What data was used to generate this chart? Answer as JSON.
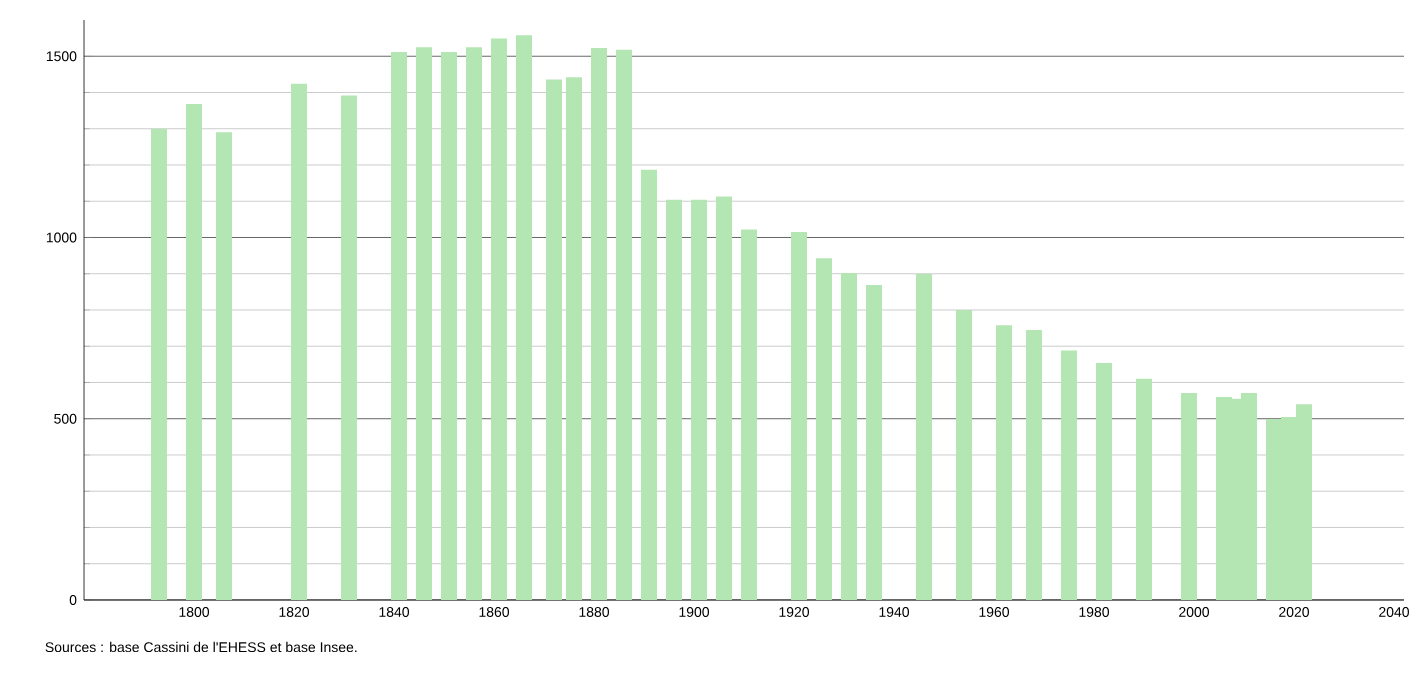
{
  "chart_data": {
    "type": "bar",
    "series": [
      {
        "color": "#b3e6b3",
        "x": [
          1793,
          1800,
          1806,
          1821,
          1831,
          1841,
          1846,
          1851,
          1856,
          1861,
          1866,
          1872,
          1876,
          1881,
          1886,
          1891,
          1896,
          1901,
          1906,
          1911,
          1921,
          1926,
          1931,
          1936,
          1946,
          1954,
          1962,
          1968,
          1975,
          1982,
          1990,
          1999,
          2006,
          2008,
          2011,
          2016,
          2019,
          2022
        ],
        "values": [
          1300,
          1368,
          1290,
          1424,
          1392,
          1512,
          1525,
          1512,
          1525,
          1549,
          1558,
          1436,
          1442,
          1523,
          1518,
          1187,
          1104,
          1104,
          1113,
          1022,
          1015,
          943,
          902,
          869,
          900,
          800,
          758,
          745,
          688,
          654,
          610,
          571,
          560,
          555,
          571,
          499,
          505,
          540
        ]
      }
    ],
    "xlim": [
      1778,
      2042
    ],
    "xticks": [
      1800,
      1820,
      1840,
      1860,
      1880,
      1900,
      1920,
      1940,
      1960,
      1980,
      2000,
      2020,
      2040
    ],
    "ylim": [
      0,
      1600
    ],
    "yticks": [
      0,
      500,
      1000,
      1500
    ],
    "grid": "y",
    "annotations": [
      "Sources : base Cassini de l'EHESS et base Insee."
    ]
  }
}
